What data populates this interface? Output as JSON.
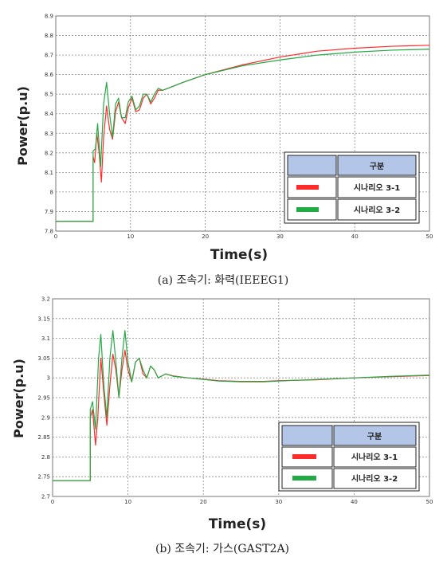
{
  "chart_data": [
    {
      "type": "line",
      "caption": "(a) 조속기: 화력(IEEEG1)",
      "xlabel": "Time(s)",
      "ylabel": "Power(p.u)",
      "xlim": [
        0,
        50
      ],
      "ylim": [
        7.8,
        8.9
      ],
      "xticks": [
        0,
        10,
        20,
        30,
        40,
        50
      ],
      "xtick_labels": [
        "0",
        "10",
        "20",
        "30",
        "40",
        "50"
      ],
      "yticks": [
        7.8,
        7.9,
        8.0,
        8.1,
        8.2,
        8.3,
        8.4,
        8.5,
        8.6,
        8.7,
        8.8,
        8.9
      ],
      "ytick_labels": [
        "7.8",
        "7.9",
        "8",
        "8.1",
        "8.2",
        "8.3",
        "8.4",
        "8.5",
        "8.6",
        "8.7",
        "8.8",
        "8.9"
      ],
      "grid": true,
      "legend": {
        "header": "구분",
        "position": "bottom-right"
      },
      "series": [
        {
          "name": "시나리오 3-1",
          "color": "#ff2a2a",
          "points": [
            [
              0,
              7.85
            ],
            [
              5.0,
              7.85
            ],
            [
              5.0,
              8.18
            ],
            [
              5.2,
              8.15
            ],
            [
              5.5,
              8.3
            ],
            [
              5.8,
              8.2
            ],
            [
              6.1,
              8.05
            ],
            [
              6.4,
              8.28
            ],
            [
              6.8,
              8.44
            ],
            [
              7.2,
              8.32
            ],
            [
              7.6,
              8.27
            ],
            [
              8.0,
              8.41
            ],
            [
              8.4,
              8.46
            ],
            [
              8.8,
              8.38
            ],
            [
              9.3,
              8.35
            ],
            [
              9.7,
              8.43
            ],
            [
              10.2,
              8.48
            ],
            [
              10.7,
              8.41
            ],
            [
              11.2,
              8.42
            ],
            [
              11.7,
              8.48
            ],
            [
              12.2,
              8.5
            ],
            [
              12.7,
              8.45
            ],
            [
              13.2,
              8.48
            ],
            [
              13.7,
              8.52
            ],
            [
              14.3,
              8.52
            ],
            [
              15,
              8.53
            ],
            [
              17,
              8.56
            ],
            [
              20,
              8.6
            ],
            [
              25,
              8.65
            ],
            [
              30,
              8.69
            ],
            [
              35,
              8.72
            ],
            [
              40,
              8.735
            ],
            [
              45,
              8.745
            ],
            [
              50,
              8.75
            ]
          ]
        },
        {
          "name": "시나리오 3-2",
          "color": "#22aa44",
          "points": [
            [
              0,
              7.85
            ],
            [
              5.0,
              7.85
            ],
            [
              5.0,
              8.21
            ],
            [
              5.3,
              8.22
            ],
            [
              5.6,
              8.35
            ],
            [
              6.0,
              8.13
            ],
            [
              6.4,
              8.45
            ],
            [
              6.8,
              8.56
            ],
            [
              7.2,
              8.4
            ],
            [
              7.6,
              8.28
            ],
            [
              8.0,
              8.45
            ],
            [
              8.4,
              8.48
            ],
            [
              8.8,
              8.38
            ],
            [
              9.3,
              8.38
            ],
            [
              9.7,
              8.46
            ],
            [
              10.2,
              8.49
            ],
            [
              10.7,
              8.42
            ],
            [
              11.2,
              8.44
            ],
            [
              11.7,
              8.5
            ],
            [
              12.2,
              8.5
            ],
            [
              12.7,
              8.46
            ],
            [
              13.2,
              8.5
            ],
            [
              13.7,
              8.53
            ],
            [
              14.3,
              8.52
            ],
            [
              15,
              8.53
            ],
            [
              17,
              8.56
            ],
            [
              20,
              8.6
            ],
            [
              25,
              8.645
            ],
            [
              30,
              8.675
            ],
            [
              35,
              8.7
            ],
            [
              40,
              8.715
            ],
            [
              45,
              8.725
            ],
            [
              50,
              8.73
            ]
          ]
        }
      ]
    },
    {
      "type": "line",
      "caption": "(b) 조속기: 가스(GAST2A)",
      "xlabel": "Time(s)",
      "ylabel": "Power(p.u)",
      "xlim": [
        0,
        50
      ],
      "ylim": [
        2.7,
        3.2
      ],
      "xticks": [
        0,
        10,
        20,
        30,
        40,
        50
      ],
      "xtick_labels": [
        "0",
        "10",
        "20",
        "30",
        "40",
        "50"
      ],
      "yticks": [
        2.7,
        2.75,
        2.8,
        2.85,
        2.9,
        2.95,
        3.0,
        3.05,
        3.1,
        3.15,
        3.2
      ],
      "ytick_labels": [
        "2.7",
        "2.75",
        "2.8",
        "2.85",
        "2.9",
        "2.95",
        "3",
        "3.05",
        "3.1",
        "3.15",
        "3.2"
      ],
      "grid": true,
      "legend": {
        "header": "구분",
        "position": "bottom-right"
      },
      "series": [
        {
          "name": "시나리오 3-1",
          "color": "#ff2a2a",
          "points": [
            [
              0,
              2.74
            ],
            [
              5.0,
              2.74
            ],
            [
              5.0,
              2.9
            ],
            [
              5.3,
              2.92
            ],
            [
              5.7,
              2.83
            ],
            [
              6.0,
              2.9
            ],
            [
              6.4,
              3.05
            ],
            [
              6.8,
              2.96
            ],
            [
              7.2,
              2.88
            ],
            [
              7.6,
              2.98
            ],
            [
              8.0,
              3.06
            ],
            [
              8.4,
              3.02
            ],
            [
              8.8,
              2.95
            ],
            [
              9.2,
              3.02
            ],
            [
              9.6,
              3.07
            ],
            [
              10.0,
              3.02
            ],
            [
              10.5,
              2.99
            ],
            [
              11.0,
              3.04
            ],
            [
              11.5,
              3.05
            ],
            [
              12.0,
              3.01
            ],
            [
              12.5,
              3.0
            ],
            [
              13.0,
              3.03
            ],
            [
              13.5,
              3.02
            ],
            [
              14.0,
              3.0
            ],
            [
              15,
              3.01
            ],
            [
              16,
              3.005
            ],
            [
              18,
              3.0
            ],
            [
              20,
              2.997
            ],
            [
              22,
              2.993
            ],
            [
              25,
              2.991
            ],
            [
              28,
              2.991
            ],
            [
              30,
              2.993
            ],
            [
              35,
              2.995
            ],
            [
              40,
              3.0
            ],
            [
              45,
              3.003
            ],
            [
              50,
              3.006
            ]
          ]
        },
        {
          "name": "시나리오 3-2",
          "color": "#22aa44",
          "points": [
            [
              0,
              2.74
            ],
            [
              5.0,
              2.74
            ],
            [
              5.0,
              2.92
            ],
            [
              5.3,
              2.94
            ],
            [
              5.7,
              2.87
            ],
            [
              6.1,
              3.05
            ],
            [
              6.4,
              3.11
            ],
            [
              6.8,
              2.98
            ],
            [
              7.2,
              2.9
            ],
            [
              7.6,
              3.05
            ],
            [
              8.0,
              3.12
            ],
            [
              8.4,
              3.04
            ],
            [
              8.8,
              2.95
            ],
            [
              9.2,
              3.05
            ],
            [
              9.6,
              3.12
            ],
            [
              10.0,
              3.04
            ],
            [
              10.5,
              2.99
            ],
            [
              11.0,
              3.04
            ],
            [
              11.5,
              3.05
            ],
            [
              12.0,
              3.02
            ],
            [
              12.5,
              3.0
            ],
            [
              13.0,
              3.03
            ],
            [
              13.5,
              3.02
            ],
            [
              14.0,
              3.0
            ],
            [
              15,
              3.01
            ],
            [
              16,
              3.004
            ],
            [
              18,
              3.0
            ],
            [
              20,
              2.996
            ],
            [
              22,
              2.992
            ],
            [
              25,
              2.99
            ],
            [
              28,
              2.99
            ],
            [
              30,
              2.992
            ],
            [
              35,
              2.996
            ],
            [
              40,
              3.0
            ],
            [
              45,
              3.004
            ],
            [
              50,
              3.007
            ]
          ]
        }
      ]
    }
  ]
}
